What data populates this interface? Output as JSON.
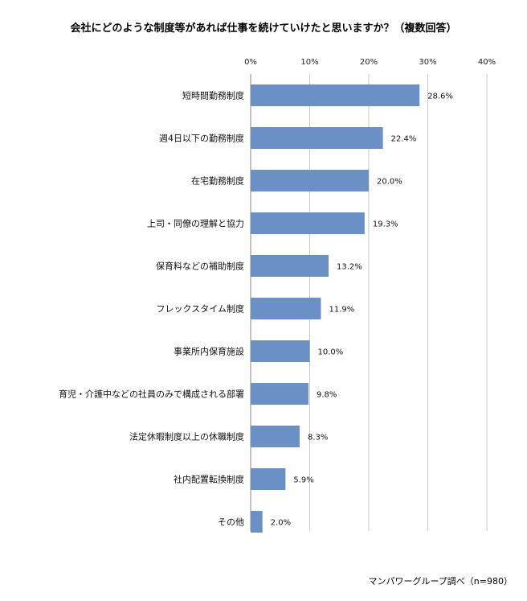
{
  "chart_data": {
    "type": "bar",
    "orientation": "horizontal",
    "title": "会社にどのような制度等があれば仕事を続けていけたと思いますか？（複数回答）",
    "categories": [
      "短時間勤務制度",
      "週4日以下の勤務制度",
      "在宅勤務制度",
      "上司・同僚の理解と協力",
      "保育料などの補助制度",
      "フレックスタイム制度",
      "事業所内保育施設",
      "育児・介護中などの社員のみで構成される部署",
      "法定休暇制度以上の休職制度",
      "社内配置転換制度",
      "その他"
    ],
    "values": [
      28.6,
      22.4,
      20.0,
      19.3,
      13.2,
      11.9,
      10.0,
      9.8,
      8.3,
      5.9,
      2.0
    ],
    "value_labels": [
      "28.6%",
      "22.4%",
      "20.0%",
      "19.3%",
      "13.2%",
      "11.9%",
      "10.0%",
      "9.8%",
      "8.3%",
      "5.9%",
      "2.0%"
    ],
    "x_ticks": [
      "0%",
      "10%",
      "20%",
      "30%",
      "40%"
    ],
    "xlim": [
      0,
      40
    ],
    "grid": true,
    "bar_color": "#6a90c6"
  },
  "source_note": "マンパワーグループ調べ（n=980）"
}
